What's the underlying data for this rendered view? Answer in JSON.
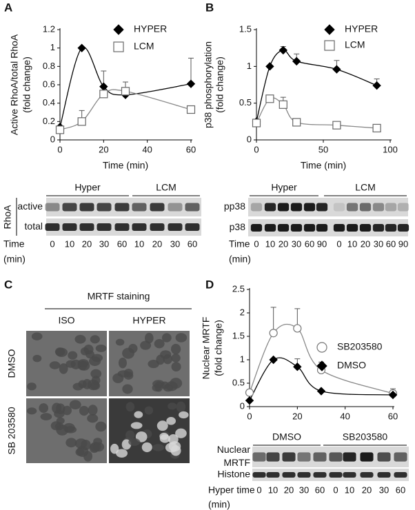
{
  "panel_labels": [
    "A",
    "B",
    "C",
    "D"
  ],
  "chart_data": [
    {
      "type": "line",
      "ylabel": [
        "Active RhoA/total RhoA",
        "(fold change)"
      ],
      "xlabel": "Time (min)",
      "xlim": [
        0,
        60
      ],
      "ylim": [
        0,
        1.2
      ],
      "xticks": [
        0,
        20,
        40,
        60
      ],
      "yticks": [
        0,
        0.2,
        0.4,
        0.6,
        0.8,
        1,
        1.2
      ],
      "series": [
        {
          "name": "HYPER",
          "marker": "diamond",
          "color": "#000000",
          "line_color": "#000000",
          "x": [
            0,
            10,
            20,
            30,
            60
          ],
          "values": [
            0.14,
            1.0,
            0.58,
            0.49,
            0.61
          ],
          "errors": [
            null,
            null,
            0.17,
            null,
            0.28
          ]
        },
        {
          "name": "LCM",
          "marker": "square",
          "color": "#ffffff",
          "line_color": "#888888",
          "x": [
            0,
            10,
            20,
            30,
            60
          ],
          "values": [
            0.11,
            0.2,
            0.5,
            0.53,
            0.33
          ],
          "errors": [
            null,
            0.12,
            null,
            0.1,
            null
          ]
        }
      ]
    },
    {
      "type": "line",
      "ylabel": [
        "p38 phosphorylation",
        "(fold change)"
      ],
      "xlabel": "Time (min)",
      "xlim": [
        0,
        100
      ],
      "ylim": [
        0,
        1.5
      ],
      "xticks": [
        0,
        50,
        100
      ],
      "yticks": [
        0,
        0.5,
        1,
        1.5
      ],
      "series": [
        {
          "name": "HYPER",
          "marker": "diamond",
          "color": "#000000",
          "line_color": "#000000",
          "x": [
            0,
            10,
            20,
            30,
            60,
            90
          ],
          "values": [
            0.25,
            1.0,
            1.22,
            1.07,
            0.96,
            0.74
          ],
          "errors": [
            null,
            null,
            0.05,
            0.1,
            0.12,
            0.09
          ]
        },
        {
          "name": "LCM",
          "marker": "square",
          "color": "#ffffff",
          "line_color": "#888888",
          "x": [
            0,
            10,
            20,
            30,
            60,
            90
          ],
          "values": [
            0.23,
            0.56,
            0.48,
            0.24,
            0.2,
            0.16
          ],
          "errors": [
            null,
            null,
            0.1,
            0.03,
            0.03,
            0.02
          ]
        }
      ]
    },
    {
      "type": "line",
      "ylabel": [
        "Nuclear MRTF",
        "(fold change)"
      ],
      "xlim": [
        0,
        60
      ],
      "ylim": [
        0,
        2.5
      ],
      "xticks": [
        0,
        20,
        40,
        60
      ],
      "yticks": [
        0,
        0.5,
        1,
        1.5,
        2,
        2.5
      ],
      "series": [
        {
          "name": "SB203580",
          "marker": "circle",
          "color": "#ffffff",
          "line_color": "#888888",
          "x": [
            0,
            10,
            20,
            30,
            60
          ],
          "values": [
            0.3,
            1.57,
            1.67,
            0.78,
            0.28
          ],
          "errors": [
            null,
            0.55,
            0.42,
            0.17,
            0.1
          ]
        },
        {
          "name": "DMSO",
          "marker": "diamond",
          "color": "#000000",
          "line_color": "#000000",
          "x": [
            0,
            10,
            20,
            30,
            60
          ],
          "values": [
            0.13,
            1.0,
            0.85,
            0.33,
            0.25
          ],
          "errors": [
            null,
            null,
            0.17,
            null,
            null
          ]
        }
      ]
    }
  ],
  "blots": [
    {
      "groups": [
        "Hyper",
        "LCM"
      ],
      "side_label": "RhoA",
      "rows": [
        [
          "active"
        ],
        [
          "total"
        ]
      ],
      "time_label": [
        "Time",
        "(min)"
      ],
      "lanes": [
        "0",
        "10",
        "20",
        "30",
        "60",
        "10",
        "20",
        "30",
        "60"
      ]
    },
    {
      "groups": [
        "Hyper",
        "LCM"
      ],
      "rows": [
        [
          "pp38"
        ],
        [
          "p38"
        ]
      ],
      "time_label": [
        "Time",
        "(min)"
      ],
      "lanes": [
        "0",
        "10",
        "20",
        "30",
        "60",
        "90",
        "0",
        "10",
        "20",
        "30",
        "60",
        "90"
      ]
    },
    {
      "groups": [
        "DMSO",
        "SB203580"
      ],
      "rows": [
        [
          "Nuclear",
          "MRTF"
        ],
        [
          "Histone"
        ]
      ],
      "time_label": [
        "Hyper time",
        "(min)"
      ],
      "lanes": [
        "0",
        "10",
        "20",
        "30",
        "60",
        "0",
        "10",
        "20",
        "30",
        "60"
      ]
    }
  ],
  "staining": {
    "title": "MRTF staining",
    "columns": [
      "ISO",
      "HYPER"
    ],
    "rows": [
      "DMSO",
      "SB 203580"
    ]
  }
}
